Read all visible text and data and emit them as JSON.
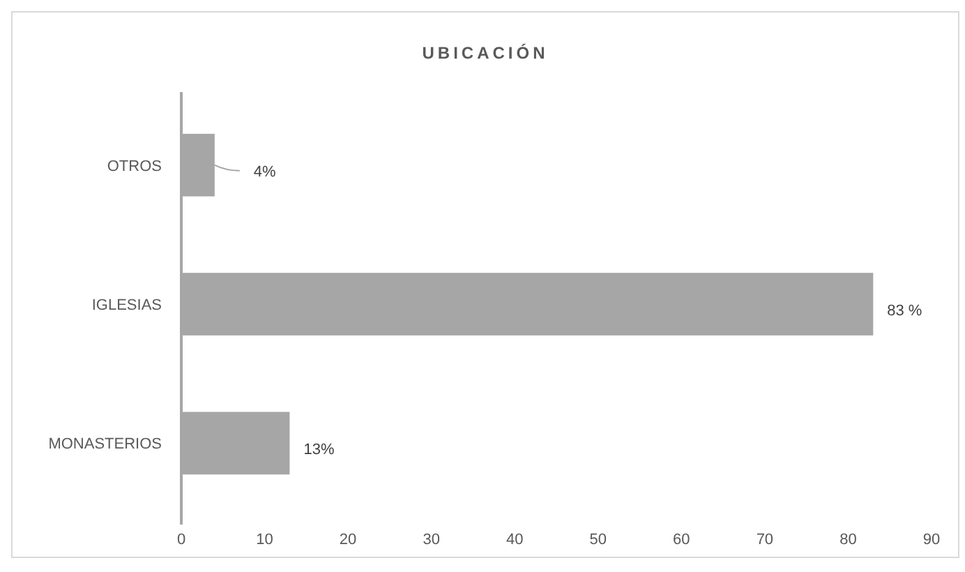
{
  "chart_data": {
    "type": "bar",
    "orientation": "horizontal",
    "title": "UBICACIÓN",
    "categories": [
      "OTROS",
      "IGLESIAS",
      "MONASTERIOS"
    ],
    "values": [
      4,
      83,
      13
    ],
    "value_labels": [
      "4%",
      "83 %",
      "13%"
    ],
    "color": "#a6a6a6",
    "xlim": [
      0,
      90
    ],
    "xticks": [
      0,
      10,
      20,
      30,
      40,
      50,
      60,
      70,
      80,
      90
    ],
    "grid": false
  }
}
